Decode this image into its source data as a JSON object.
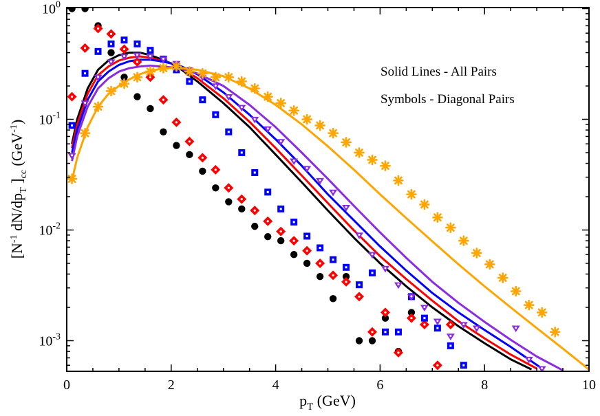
{
  "chart_data": {
    "type": "scatter",
    "title": "",
    "xlabel": "p",
    "xlabel_sub": "T",
    "xlabel_unit": " (GeV)",
    "ylabel_parts": {
      "open": "[N",
      "sup1": "-1",
      "mid": " dN/dp",
      "sub1": "T",
      "close": " ]",
      "sub2": "cc",
      "unit_open": " (GeV",
      "sup2": "-1",
      "unit_close": ")"
    },
    "xlim": [
      0,
      10
    ],
    "ylim": [
      0.00055,
      1.1
    ],
    "yscale": "log",
    "x_ticks": [
      "0",
      "2",
      "4",
      "6",
      "8",
      "10"
    ],
    "y_ticks": [
      {
        "base": "10",
        "exp": "0",
        "value": 1
      },
      {
        "base": "10",
        "exp": "-1",
        "value": 0.1
      },
      {
        "base": "10",
        "exp": "-2",
        "value": 0.01
      },
      {
        "base": "10",
        "exp": "-3",
        "value": 0.001
      }
    ],
    "annotations": [
      "Solid Lines - All Pairs",
      "Symbols - Diagonal Pairs"
    ],
    "lines": [
      {
        "name": "black",
        "color": "#000000",
        "x": [
          0.1,
          0.2,
          0.4,
          0.6,
          0.8,
          1.0,
          1.2,
          1.4,
          1.6,
          1.8,
          2.0,
          2.2,
          2.5,
          3.0,
          3.5,
          4.0,
          4.5,
          5.0,
          5.5,
          6.0,
          6.5,
          7.0,
          7.5,
          8.0,
          8.5,
          8.9
        ],
        "y": [
          0.06,
          0.1,
          0.19,
          0.28,
          0.34,
          0.38,
          0.4,
          0.4,
          0.38,
          0.35,
          0.32,
          0.28,
          0.22,
          0.14,
          0.085,
          0.048,
          0.027,
          0.015,
          0.0085,
          0.005,
          0.0031,
          0.002,
          0.00135,
          0.00095,
          0.00068,
          0.00055
        ]
      },
      {
        "name": "red",
        "color": "#ff0000",
        "x": [
          0.1,
          0.2,
          0.4,
          0.6,
          0.8,
          1.0,
          1.2,
          1.4,
          1.6,
          1.8,
          2.0,
          2.2,
          2.5,
          3.0,
          3.5,
          4.0,
          4.5,
          5.0,
          5.5,
          6.0,
          6.5,
          7.0,
          7.5,
          8.0,
          8.5,
          9.0
        ],
        "y": [
          0.055,
          0.09,
          0.17,
          0.25,
          0.3,
          0.34,
          0.36,
          0.37,
          0.36,
          0.34,
          0.32,
          0.29,
          0.235,
          0.155,
          0.095,
          0.055,
          0.031,
          0.0175,
          0.0099,
          0.0058,
          0.0036,
          0.0023,
          0.0015,
          0.00105,
          0.00075,
          0.00056
        ]
      },
      {
        "name": "blue",
        "color": "#0000ff",
        "x": [
          0.1,
          0.2,
          0.4,
          0.6,
          0.8,
          1.0,
          1.2,
          1.4,
          1.6,
          1.8,
          2.0,
          2.2,
          2.5,
          3.0,
          3.5,
          4.0,
          4.5,
          5.0,
          5.5,
          6.0,
          6.5,
          7.0,
          7.5,
          8.0,
          8.5,
          9.1
        ],
        "y": [
          0.05,
          0.08,
          0.15,
          0.22,
          0.27,
          0.31,
          0.335,
          0.345,
          0.345,
          0.335,
          0.32,
          0.3,
          0.255,
          0.175,
          0.11,
          0.066,
          0.038,
          0.021,
          0.0122,
          0.0071,
          0.0043,
          0.0027,
          0.0018,
          0.00125,
          0.00088,
          0.00056
        ]
      },
      {
        "name": "purple",
        "color": "#8b2be2",
        "x": [
          0.1,
          0.2,
          0.4,
          0.6,
          0.8,
          1.0,
          1.2,
          1.4,
          1.6,
          1.8,
          2.0,
          2.2,
          2.5,
          3.0,
          3.5,
          4.0,
          4.5,
          5.0,
          5.5,
          6.0,
          6.5,
          7.0,
          7.5,
          8.0,
          8.5,
          9.0,
          9.5
        ],
        "y": [
          0.042,
          0.07,
          0.13,
          0.19,
          0.235,
          0.27,
          0.29,
          0.3,
          0.305,
          0.3,
          0.295,
          0.285,
          0.26,
          0.2,
          0.135,
          0.085,
          0.05,
          0.029,
          0.0165,
          0.0095,
          0.0056,
          0.0034,
          0.0022,
          0.00148,
          0.00102,
          0.00072,
          0.00054
        ]
      },
      {
        "name": "orange",
        "color": "#ffa500",
        "x": [
          0.1,
          0.2,
          0.4,
          0.6,
          0.8,
          1.0,
          1.2,
          1.4,
          1.6,
          1.8,
          2.0,
          2.2,
          2.5,
          3.0,
          3.5,
          4.0,
          4.5,
          5.0,
          5.5,
          6.0,
          6.5,
          7.0,
          7.5,
          8.0,
          8.5,
          9.0,
          9.5,
          10.0
        ],
        "y": [
          0.028,
          0.045,
          0.085,
          0.13,
          0.17,
          0.2,
          0.23,
          0.255,
          0.275,
          0.285,
          0.29,
          0.29,
          0.28,
          0.245,
          0.19,
          0.135,
          0.09,
          0.057,
          0.035,
          0.021,
          0.0128,
          0.0079,
          0.0049,
          0.0031,
          0.002,
          0.0013,
          0.00085,
          0.00055
        ]
      }
    ],
    "series": [
      {
        "name": "black-circles",
        "color": "#000000",
        "marker": "circle",
        "x": [
          0.1,
          0.35,
          0.6,
          0.85,
          1.1,
          1.35,
          1.6,
          1.85,
          2.1,
          2.35,
          2.6,
          2.85,
          3.1,
          3.35,
          3.6,
          3.85,
          4.1,
          4.35,
          4.6,
          4.85,
          5.1,
          5.35,
          5.6,
          5.85,
          6.1,
          6.35,
          6.6
        ],
        "y": [
          1.0,
          1.0,
          0.7,
          0.4,
          0.24,
          0.16,
          0.125,
          0.077,
          0.058,
          0.048,
          0.034,
          0.024,
          0.018,
          0.0155,
          0.0108,
          0.0087,
          0.008,
          0.006,
          0.005,
          0.0038,
          0.0024,
          0.0038,
          0.001,
          0.001,
          0.0016,
          0.0008,
          0.0018
        ]
      },
      {
        "name": "red-diamonds",
        "color": "#ff0000",
        "marker": "diamond",
        "x": [
          0.1,
          0.35,
          0.6,
          0.85,
          1.1,
          1.35,
          1.6,
          1.85,
          2.1,
          2.35,
          2.6,
          2.85,
          3.1,
          3.35,
          3.6,
          3.85,
          4.1,
          4.35,
          4.6,
          4.85,
          5.1,
          5.35,
          5.6,
          5.85,
          6.1,
          6.35,
          6.6,
          6.85,
          7.1,
          7.35
        ],
        "y": [
          0.16,
          0.44,
          0.66,
          0.59,
          0.43,
          0.33,
          0.24,
          0.15,
          0.094,
          0.063,
          0.045,
          0.035,
          0.024,
          0.019,
          0.015,
          0.012,
          0.0097,
          0.008,
          0.0065,
          0.005,
          0.0039,
          0.0034,
          0.0025,
          0.0012,
          0.0018,
          0.00078,
          0.0016,
          0.0014,
          0.0006,
          0.0014
        ]
      },
      {
        "name": "blue-squares",
        "color": "#0000ff",
        "marker": "square",
        "x": [
          0.1,
          0.35,
          0.6,
          0.85,
          1.1,
          1.35,
          1.6,
          1.85,
          2.1,
          2.35,
          2.6,
          2.85,
          3.1,
          3.35,
          3.6,
          3.85,
          4.1,
          4.35,
          4.6,
          4.85,
          5.1,
          5.35,
          5.6,
          5.85,
          6.1,
          6.35,
          6.6,
          6.85,
          7.1,
          7.35,
          7.6
        ],
        "y": [
          0.088,
          0.26,
          0.41,
          0.48,
          0.52,
          0.48,
          0.42,
          0.35,
          0.28,
          0.22,
          0.15,
          0.11,
          0.077,
          0.05,
          0.033,
          0.022,
          0.0155,
          0.0118,
          0.0088,
          0.0069,
          0.0054,
          0.0046,
          0.0032,
          0.0041,
          0.0012,
          0.0012,
          0.0025,
          0.0016,
          0.0013,
          0.0009,
          0.0006
        ]
      },
      {
        "name": "purple-triangles",
        "color": "#8b2be2",
        "marker": "triangle",
        "x": [
          0.1,
          0.35,
          0.6,
          0.85,
          1.1,
          1.35,
          1.6,
          1.85,
          2.1,
          2.35,
          2.6,
          2.85,
          3.1,
          3.35,
          3.6,
          3.85,
          4.1,
          4.35,
          4.6,
          4.85,
          5.1,
          5.35,
          5.6,
          5.85,
          6.1,
          6.35,
          6.6,
          6.85,
          7.1,
          7.35,
          7.6,
          7.85,
          8.6,
          8.85,
          9.1
        ],
        "y": [
          0.047,
          0.14,
          0.24,
          0.33,
          0.37,
          0.38,
          0.37,
          0.35,
          0.32,
          0.28,
          0.24,
          0.2,
          0.16,
          0.128,
          0.1,
          0.082,
          0.063,
          0.042,
          0.036,
          0.028,
          0.022,
          0.016,
          0.009,
          0.006,
          0.0045,
          0.0032,
          0.0025,
          0.002,
          0.0015,
          0.0011,
          0.0014,
          0.0013,
          0.0013,
          0.00068,
          0.00056
        ]
      },
      {
        "name": "orange-stars",
        "color": "#ffa500",
        "marker": "star",
        "x": [
          0.1,
          0.35,
          0.6,
          0.85,
          1.1,
          1.35,
          1.6,
          1.85,
          2.1,
          2.35,
          2.6,
          2.85,
          3.1,
          3.35,
          3.6,
          3.85,
          4.1,
          4.35,
          4.6,
          4.85,
          5.1,
          5.35,
          5.6,
          5.85,
          6.1,
          6.35,
          6.6,
          6.85,
          7.1,
          7.35,
          7.6,
          7.85,
          8.1,
          8.35,
          8.6,
          8.85,
          9.1,
          9.35
        ],
        "y": [
          0.029,
          0.075,
          0.13,
          0.18,
          0.21,
          0.24,
          0.27,
          0.29,
          0.3,
          0.27,
          0.26,
          0.24,
          0.24,
          0.22,
          0.19,
          0.16,
          0.14,
          0.12,
          0.1,
          0.088,
          0.075,
          0.062,
          0.05,
          0.043,
          0.038,
          0.028,
          0.021,
          0.017,
          0.013,
          0.0105,
          0.008,
          0.0062,
          0.0049,
          0.0037,
          0.0028,
          0.0021,
          0.0018,
          0.0012
        ]
      }
    ]
  }
}
